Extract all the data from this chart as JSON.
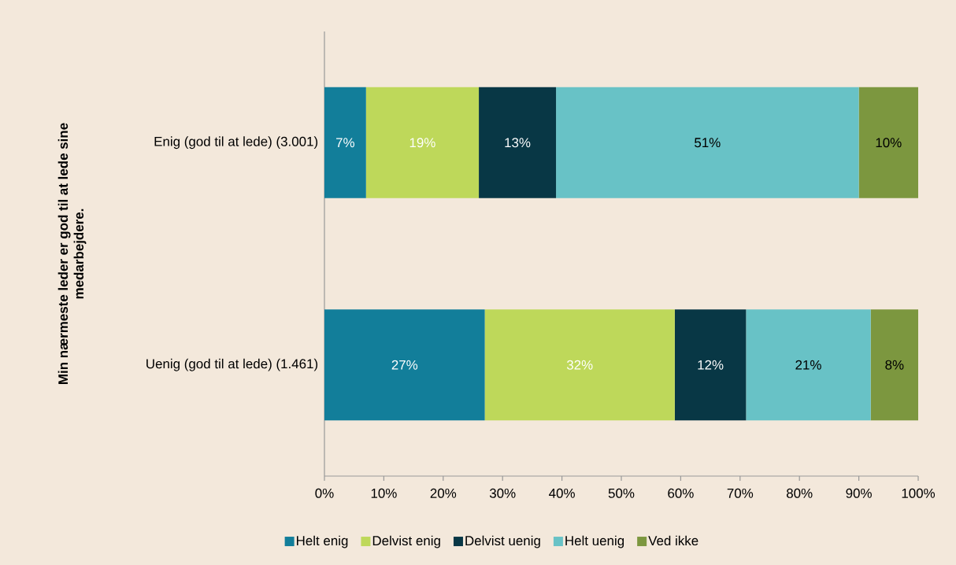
{
  "chart_data": {
    "type": "bar",
    "orientation": "horizontal",
    "stacked": true,
    "ylabel": "Min nærmeste leder er god til at lede sine medarbejdere.",
    "categories": [
      "Enig (god til at lede) (3.001)",
      "Uenig (god til at lede) (1.461)"
    ],
    "series": [
      {
        "name": "Helt enig",
        "color": "#127e9a",
        "values": [
          7,
          27
        ],
        "value_labels": [
          "7%",
          "27%"
        ]
      },
      {
        "name": "Delvist enig",
        "color": "#bed85a",
        "values": [
          19,
          32
        ],
        "value_labels": [
          "19%",
          "32%"
        ]
      },
      {
        "name": "Delvist uenig",
        "color": "#083745",
        "values": [
          13,
          12
        ],
        "value_labels": [
          "13%",
          "12%"
        ]
      },
      {
        "name": "Helt uenig",
        "color": "#68c2c6",
        "values": [
          51,
          21
        ],
        "value_labels": [
          "51%",
          "21%"
        ]
      },
      {
        "name": "Ved ikke",
        "color": "#7c973f",
        "values": [
          10,
          8
        ],
        "value_labels": [
          "10%",
          "8%"
        ]
      }
    ],
    "xlim": [
      0,
      100
    ],
    "xticks": [
      {
        "value": 0,
        "label": "0%"
      },
      {
        "value": 10,
        "label": "10%"
      },
      {
        "value": 20,
        "label": "20%"
      },
      {
        "value": 30,
        "label": "30%"
      },
      {
        "value": 40,
        "label": "40%"
      },
      {
        "value": 50,
        "label": "50%"
      },
      {
        "value": 60,
        "label": "60%"
      },
      {
        "value": 70,
        "label": "70%"
      },
      {
        "value": 80,
        "label": "80%"
      },
      {
        "value": 90,
        "label": "90%"
      },
      {
        "value": 100,
        "label": "100%"
      }
    ],
    "legend": "bottom"
  }
}
